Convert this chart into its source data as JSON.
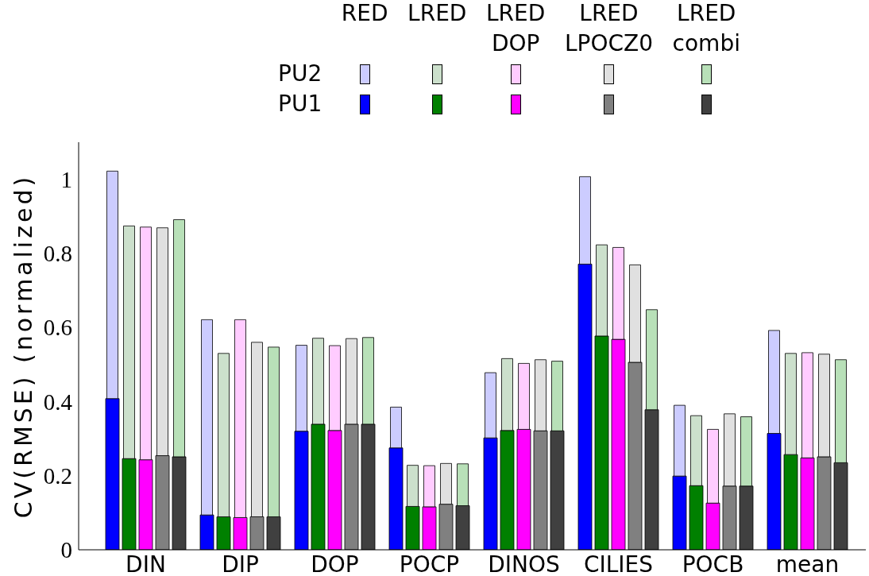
{
  "chart_data": {
    "type": "bar",
    "ylabel": "CV(RMSE) (normalized)",
    "categories": [
      "DIN",
      "DIP",
      "DOP",
      "POCP",
      "DINOS",
      "CILIES",
      "POCB",
      "mean"
    ],
    "ylim": [
      0,
      1.1
    ],
    "yticks": [
      0,
      0.2,
      0.4,
      0.6,
      0.8,
      1
    ],
    "annotations": [
      "RED",
      "LRED",
      "LRED DOP",
      "LRED LPOCZ0",
      "LRED combi",
      "PU2",
      "PU1"
    ],
    "series": [
      {
        "color": "#0000ff",
        "values": [
          0.408,
          0.094,
          0.32,
          0.275,
          0.302,
          0.771,
          0.199,
          0.314
        ]
      },
      {
        "color": "#ccccff",
        "base": [
          0.408,
          0.094,
          0.32,
          0.275,
          0.302,
          0.771,
          0.199,
          0.314
        ],
        "values": [
          0.614,
          0.527,
          0.232,
          0.11,
          0.176,
          0.236,
          0.191,
          0.278
        ]
      },
      {
        "color": "#008000",
        "values": [
          0.246,
          0.089,
          0.339,
          0.117,
          0.322,
          0.577,
          0.173,
          0.257
        ]
      },
      {
        "color": "#cce0cc",
        "base": [
          0.246,
          0.089,
          0.339,
          0.117,
          0.322,
          0.577,
          0.173,
          0.257
        ],
        "values": [
          0.628,
          0.441,
          0.232,
          0.111,
          0.194,
          0.246,
          0.189,
          0.273
        ]
      },
      {
        "color": "#ff00ff",
        "values": [
          0.243,
          0.087,
          0.322,
          0.116,
          0.325,
          0.568,
          0.126,
          0.248
        ]
      },
      {
        "color": "#ffccff",
        "base": [
          0.243,
          0.087,
          0.322,
          0.116,
          0.325,
          0.568,
          0.126,
          0.248
        ],
        "values": [
          0.628,
          0.534,
          0.229,
          0.111,
          0.178,
          0.248,
          0.199,
          0.284
        ]
      },
      {
        "color": "#808080",
        "values": [
          0.254,
          0.089,
          0.339,
          0.123,
          0.321,
          0.506,
          0.172,
          0.251
        ]
      },
      {
        "color": "#e0e0e0",
        "base": [
          0.254,
          0.089,
          0.339,
          0.123,
          0.321,
          0.506,
          0.172,
          0.251
        ],
        "values": [
          0.615,
          0.471,
          0.231,
          0.11,
          0.192,
          0.263,
          0.195,
          0.277
        ]
      },
      {
        "color": "#404040",
        "values": [
          0.251,
          0.089,
          0.339,
          0.119,
          0.321,
          0.378,
          0.172,
          0.235
        ]
      },
      {
        "color": "#b8e0b8",
        "base": [
          0.251,
          0.089,
          0.339,
          0.119,
          0.321,
          0.378,
          0.172,
          0.235
        ],
        "values": [
          0.64,
          0.458,
          0.234,
          0.113,
          0.188,
          0.27,
          0.187,
          0.278
        ]
      }
    ]
  }
}
